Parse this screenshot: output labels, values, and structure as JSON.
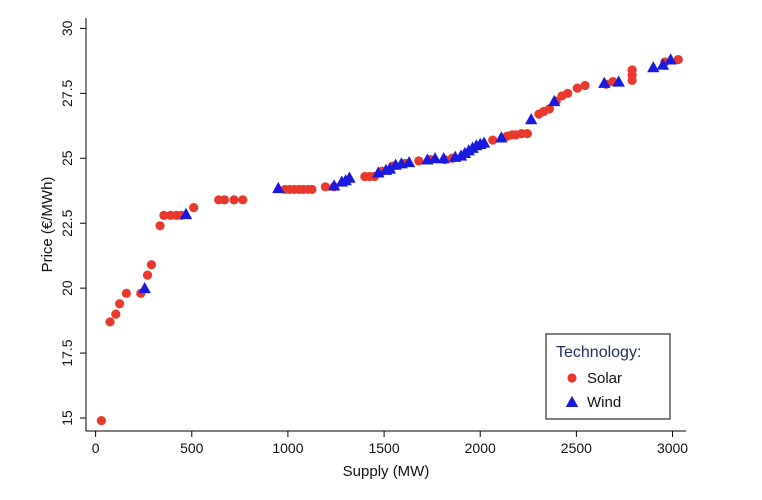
{
  "chart_data": {
    "type": "scatter",
    "xlabel": "Supply (MW)",
    "ylabel": "Price (€/MWh)",
    "xlim": [
      -50,
      3070
    ],
    "ylim": [
      14.5,
      30.4
    ],
    "xticks": [
      0,
      500,
      1000,
      1500,
      2000,
      2500,
      3000
    ],
    "yticks": [
      15,
      17.5,
      20,
      22.5,
      25,
      27.5,
      30
    ],
    "xtick_labels": [
      "0",
      "500",
      "1000",
      "1500",
      "2000",
      "2500",
      "3000"
    ],
    "ytick_labels": [
      "15",
      "17.5",
      "20",
      "22.5",
      "25",
      "27.5",
      "30"
    ],
    "grid": false,
    "legend": {
      "title": "Technology:",
      "position": "bottom-right"
    },
    "series": [
      {
        "name": "Solar",
        "marker": "circle",
        "color": "#e8392c",
        "points": [
          [
            30,
            14.9
          ],
          [
            75,
            18.7
          ],
          [
            105,
            19.0
          ],
          [
            125,
            19.4
          ],
          [
            160,
            19.8
          ],
          [
            235,
            19.8
          ],
          [
            270,
            20.5
          ],
          [
            290,
            20.9
          ],
          [
            335,
            22.4
          ],
          [
            355,
            22.8
          ],
          [
            390,
            22.8
          ],
          [
            420,
            22.8
          ],
          [
            445,
            22.8
          ],
          [
            510,
            23.1
          ],
          [
            640,
            23.4
          ],
          [
            670,
            23.4
          ],
          [
            720,
            23.4
          ],
          [
            765,
            23.4
          ],
          [
            985,
            23.8
          ],
          [
            1010,
            23.8
          ],
          [
            1035,
            23.8
          ],
          [
            1060,
            23.8
          ],
          [
            1080,
            23.8
          ],
          [
            1105,
            23.8
          ],
          [
            1125,
            23.8
          ],
          [
            1195,
            23.9
          ],
          [
            1240,
            23.9
          ],
          [
            1400,
            24.3
          ],
          [
            1425,
            24.3
          ],
          [
            1450,
            24.3
          ],
          [
            1490,
            24.5
          ],
          [
            1545,
            24.7
          ],
          [
            1610,
            24.8
          ],
          [
            1680,
            24.9
          ],
          [
            1740,
            24.95
          ],
          [
            1815,
            24.95
          ],
          [
            1855,
            25.0
          ],
          [
            2065,
            25.7
          ],
          [
            2140,
            25.85
          ],
          [
            2165,
            25.9
          ],
          [
            2185,
            25.9
          ],
          [
            2215,
            25.95
          ],
          [
            2245,
            25.95
          ],
          [
            2305,
            26.7
          ],
          [
            2330,
            26.8
          ],
          [
            2360,
            26.9
          ],
          [
            2395,
            27.2
          ],
          [
            2425,
            27.4
          ],
          [
            2455,
            27.5
          ],
          [
            2505,
            27.7
          ],
          [
            2545,
            27.8
          ],
          [
            2655,
            27.85
          ],
          [
            2690,
            27.95
          ],
          [
            2790,
            28.0
          ],
          [
            2790,
            28.2
          ],
          [
            2790,
            28.4
          ],
          [
            2960,
            28.7
          ],
          [
            3030,
            28.8
          ]
        ]
      },
      {
        "name": "Wind",
        "marker": "triangle",
        "color": "#1a1adf",
        "points": [
          [
            255,
            20.0
          ],
          [
            470,
            22.85
          ],
          [
            950,
            23.85
          ],
          [
            1240,
            23.95
          ],
          [
            1280,
            24.1
          ],
          [
            1300,
            24.15
          ],
          [
            1320,
            24.25
          ],
          [
            1470,
            24.45
          ],
          [
            1510,
            24.55
          ],
          [
            1530,
            24.6
          ],
          [
            1560,
            24.75
          ],
          [
            1590,
            24.8
          ],
          [
            1630,
            24.85
          ],
          [
            1725,
            24.95
          ],
          [
            1765,
            25.0
          ],
          [
            1810,
            25.0
          ],
          [
            1870,
            25.05
          ],
          [
            1900,
            25.1
          ],
          [
            1920,
            25.2
          ],
          [
            1940,
            25.3
          ],
          [
            1960,
            25.4
          ],
          [
            1980,
            25.5
          ],
          [
            2000,
            25.55
          ],
          [
            2020,
            25.6
          ],
          [
            2110,
            25.8
          ],
          [
            2265,
            26.5
          ],
          [
            2385,
            27.2
          ],
          [
            2645,
            27.9
          ],
          [
            2720,
            27.95
          ],
          [
            2900,
            28.5
          ],
          [
            2950,
            28.6
          ],
          [
            2990,
            28.8
          ]
        ]
      }
    ]
  }
}
